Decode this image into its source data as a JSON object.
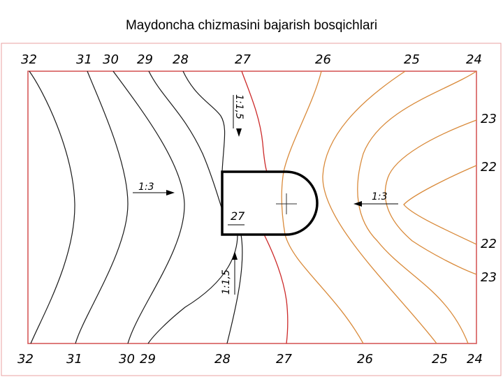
{
  "title": "Maydoncha chizmasini bajarish bosqichlari",
  "colors": {
    "frame": "#d65a5a",
    "contour_black": "#1a1a1a",
    "contour_red": "#cc2a2a",
    "contour_orange": "#d98a3a",
    "platform": "#000000"
  },
  "top_labels": [
    "32",
    "31",
    "30",
    "29",
    "28",
    "27",
    "26",
    "25",
    "24"
  ],
  "bottom_labels": [
    "32",
    "31",
    "30",
    "29",
    "28",
    "27",
    "26",
    "25",
    "24"
  ],
  "right_labels": [
    "23",
    "22",
    "22",
    "23"
  ],
  "platform": {
    "elevation_label": "27",
    "marker": "cross"
  },
  "slope_notes": {
    "left": "1:3",
    "right": "1:3",
    "upper": "1:1,5",
    "lower": "1:1,5"
  },
  "contours": [
    {
      "label": "32",
      "color": "black"
    },
    {
      "label": "31",
      "color": "black"
    },
    {
      "label": "30",
      "color": "black"
    },
    {
      "label": "29",
      "color": "black"
    },
    {
      "label": "28",
      "color": "black"
    },
    {
      "label": "27",
      "color": "red"
    },
    {
      "label": "26",
      "color": "orange"
    },
    {
      "label": "25",
      "color": "orange"
    },
    {
      "label": "24",
      "color": "orange"
    },
    {
      "label": "23",
      "color": "orange"
    },
    {
      "label": "22",
      "color": "orange"
    }
  ]
}
